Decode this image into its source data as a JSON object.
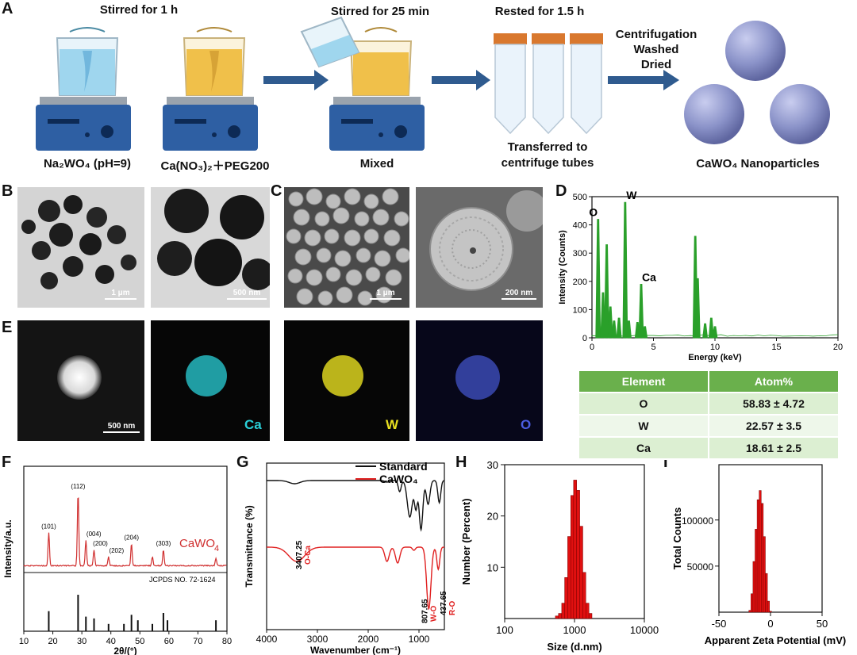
{
  "panels": {
    "A": "A",
    "B": "B",
    "C": "C",
    "D": "D",
    "E": "E",
    "F": "F",
    "G": "G",
    "H": "H",
    "I": "I"
  },
  "schematic": {
    "step1": "Stirred for 1 h",
    "step2": "Stirred for 25 min",
    "step3": "Rested  for 1.5 h",
    "step4": [
      "Centrifugation",
      "Washed",
      "Dried"
    ],
    "cap1": "Na₂WO₄ (pH=9)",
    "cap2": "Ca(NO₃)₂＋PEG200",
    "cap3": "Mixed",
    "cap4": [
      "Transferred to",
      "centrifuge tubes"
    ],
    "cap5": "CaWO₄ Nanoparticles",
    "colors": {
      "beaker_blue": "#9fd6ee",
      "beaker_yellow": "#f0c04a",
      "stirrer": "#2e5fa3",
      "arrow": "#2f5b8f",
      "tube_cap": "#d9782e",
      "sphere": "#8b93c9"
    }
  },
  "microscopy": {
    "tem_scale1": "1 μm",
    "tem_scale2": "500 nm",
    "sem_scale1": "1 μm",
    "sem_scale2": "200 nm",
    "map_scale": "500 nm",
    "map_labels": {
      "ca": "Ca",
      "w": "W",
      "o": "O"
    },
    "map_colors": {
      "ca": "#2ad0d8",
      "w": "#e8e020",
      "o": "#4a5de0"
    }
  },
  "eds_table": {
    "headers": [
      "Element",
      "Atom%"
    ],
    "rows": [
      [
        "O",
        "58.83  ± 4.72"
      ],
      [
        "W",
        "22.57  ± 3.5"
      ],
      [
        "Ca",
        "18.61  ± 2.5"
      ]
    ]
  },
  "chart_data": [
    {
      "panel": "D",
      "type": "line",
      "xlabel": "Energy (keV)",
      "ylabel": "Intensity (Counts)",
      "xlim": [
        0,
        20
      ],
      "ylim": [
        0,
        500
      ],
      "xticks": [
        0,
        5,
        10,
        15,
        20
      ],
      "yticks": [
        0,
        100,
        200,
        300,
        400,
        500
      ],
      "color": "#2aa02a",
      "peaks": [
        {
          "x": 0.5,
          "y": 420
        },
        {
          "x": 0.9,
          "y": 160
        },
        {
          "x": 1.2,
          "y": 330
        },
        {
          "x": 1.5,
          "y": 110
        },
        {
          "x": 1.8,
          "y": 60
        },
        {
          "x": 2.2,
          "y": 70
        },
        {
          "x": 2.7,
          "y": 480
        },
        {
          "x": 3.0,
          "y": 60
        },
        {
          "x": 3.7,
          "y": 55
        },
        {
          "x": 4.0,
          "y": 190
        },
        {
          "x": 4.3,
          "y": 40
        },
        {
          "x": 8.4,
          "y": 360
        },
        {
          "x": 8.6,
          "y": 210
        },
        {
          "x": 9.2,
          "y": 50
        },
        {
          "x": 9.7,
          "y": 70
        },
        {
          "x": 10.0,
          "y": 40
        }
      ],
      "annotations": [
        {
          "text": "O",
          "x": 0.5,
          "y": 420
        },
        {
          "text": "W",
          "x": 2.7,
          "y": 480
        },
        {
          "text": "Ca",
          "x": 4.0,
          "y": 190
        }
      ]
    },
    {
      "panel": "F",
      "type": "line",
      "xlabel": "2θ/(°)",
      "ylabel": "Intensity/a.u.",
      "xlim": [
        10,
        80
      ],
      "xticks": [
        10,
        20,
        30,
        40,
        50,
        60,
        70,
        80
      ],
      "series_label": "CaWO",
      "series_label_sub": "4",
      "reference_label": "JCPDS NO. 72-1624",
      "color": "#d03030",
      "peaks": [
        {
          "x": 18.6,
          "h": 0.45,
          "label": "(101)"
        },
        {
          "x": 28.7,
          "h": 1.0,
          "label": "(112)"
        },
        {
          "x": 31.4,
          "h": 0.35,
          "label": "(004)"
        },
        {
          "x": 34.2,
          "h": 0.22,
          "label": "(200)"
        },
        {
          "x": 39.2,
          "h": 0.12,
          "label": "(202)"
        },
        {
          "x": 47.1,
          "h": 0.3,
          "label": "(204)"
        },
        {
          "x": 54.3,
          "h": 0.12,
          "label": ""
        },
        {
          "x": 58.1,
          "h": 0.22,
          "label": "(303)"
        },
        {
          "x": 76.2,
          "h": 0.1,
          "label": ""
        }
      ],
      "ref_lines": [
        {
          "x": 18.6,
          "h": 0.55
        },
        {
          "x": 28.7,
          "h": 1.0
        },
        {
          "x": 31.4,
          "h": 0.4
        },
        {
          "x": 34.2,
          "h": 0.35
        },
        {
          "x": 39.2,
          "h": 0.2
        },
        {
          "x": 44.5,
          "h": 0.2
        },
        {
          "x": 47.1,
          "h": 0.45
        },
        {
          "x": 49.3,
          "h": 0.3
        },
        {
          "x": 54.3,
          "h": 0.2
        },
        {
          "x": 58.1,
          "h": 0.5
        },
        {
          "x": 59.5,
          "h": 0.3
        },
        {
          "x": 76.2,
          "h": 0.3
        }
      ]
    },
    {
      "panel": "G",
      "type": "line",
      "xlabel": "Wavenumber (cm⁻¹)",
      "ylabel": "Transmittance (%)",
      "xlim": [
        4000,
        500
      ],
      "xticks": [
        4000,
        3000,
        2000,
        1000
      ],
      "series": [
        {
          "name": "Standard",
          "color": "#111111"
        },
        {
          "name": "CaWO₄",
          "color": "#e02020"
        }
      ],
      "annotations": [
        {
          "text": "3407.25",
          "sub": "O-Ca",
          "x": 3407
        },
        {
          "text": "807.65",
          "sub": "W-O",
          "x": 807
        },
        {
          "text": "437.65",
          "sub": "R-O",
          "x": 437
        }
      ]
    },
    {
      "panel": "H",
      "type": "bar",
      "xlabel": "Size (d.nm)",
      "ylabel": "Number (Percent)",
      "xscale": "log",
      "xlim": [
        100,
        10000
      ],
      "ylim": [
        0,
        30
      ],
      "xticks": [
        100,
        1000,
        10000
      ],
      "yticks": [
        10,
        20,
        30
      ],
      "color": "#e01010",
      "bins": [
        {
          "x": 560,
          "y": 0.5
        },
        {
          "x": 620,
          "y": 1
        },
        {
          "x": 690,
          "y": 3
        },
        {
          "x": 760,
          "y": 8
        },
        {
          "x": 840,
          "y": 16
        },
        {
          "x": 930,
          "y": 24
        },
        {
          "x": 1020,
          "y": 27
        },
        {
          "x": 1130,
          "y": 25
        },
        {
          "x": 1250,
          "y": 18
        },
        {
          "x": 1380,
          "y": 9
        },
        {
          "x": 1530,
          "y": 3
        },
        {
          "x": 1690,
          "y": 1
        }
      ]
    },
    {
      "panel": "I",
      "type": "bar",
      "xlabel": "Apparent Zeta Potential (mV)",
      "ylabel": "Total Counts",
      "xlim": [
        -50,
        50
      ],
      "ylim": [
        0,
        160000
      ],
      "xticks": [
        -50,
        0,
        50
      ],
      "yticks": [
        50000,
        100000
      ],
      "color": "#e01010",
      "bins": [
        {
          "x": -20,
          "y": 2000
        },
        {
          "x": -18,
          "y": 20000
        },
        {
          "x": -16,
          "y": 55000
        },
        {
          "x": -14,
          "y": 90000
        },
        {
          "x": -12,
          "y": 122000
        },
        {
          "x": -10,
          "y": 132000
        },
        {
          "x": -8,
          "y": 118000
        },
        {
          "x": -6,
          "y": 82000
        },
        {
          "x": -4,
          "y": 42000
        },
        {
          "x": -2,
          "y": 12000
        },
        {
          "x": 0,
          "y": 1000
        }
      ]
    }
  ]
}
